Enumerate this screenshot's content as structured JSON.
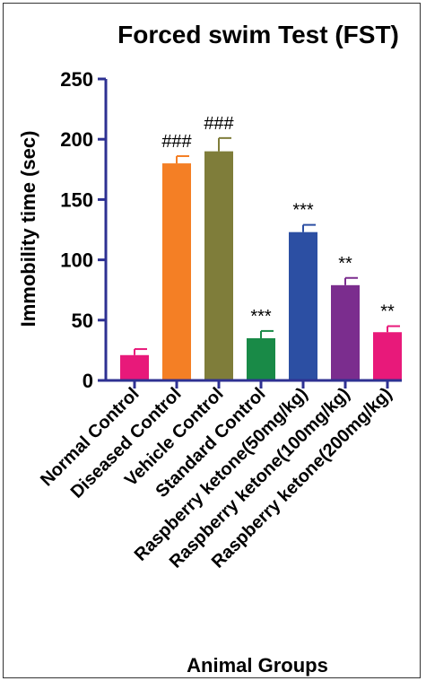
{
  "chart_data": {
    "type": "bar",
    "title": "Forced swim Test (FST)",
    "xlabel": "Animal Groups",
    "ylabel": "Immobility time (sec)",
    "ylim": [
      0,
      250
    ],
    "yticks": [
      0,
      50,
      100,
      150,
      200,
      250
    ],
    "grid": false,
    "error_bars": true,
    "categories": [
      "Normal Control",
      "Diseased Control",
      "Vehicle Control",
      "Standard Control",
      "Raspberry ketone(50mg/kg)",
      "Raspberry ketone(100mg/kg)",
      "Raspberry ketone(200mg/kg)"
    ],
    "values": [
      21,
      180,
      190,
      35,
      123,
      79,
      40
    ],
    "errors": [
      5,
      6,
      11,
      6,
      6,
      6,
      5
    ],
    "annotations": [
      "",
      "###",
      "###",
      "***",
      "***",
      "**",
      "**"
    ],
    "colors": [
      "#e8197a",
      "#f47f25",
      "#7f7d3a",
      "#198a47",
      "#2c4fa3",
      "#7b2d8e",
      "#e8197a"
    ],
    "axis_color": "#2e3192"
  }
}
